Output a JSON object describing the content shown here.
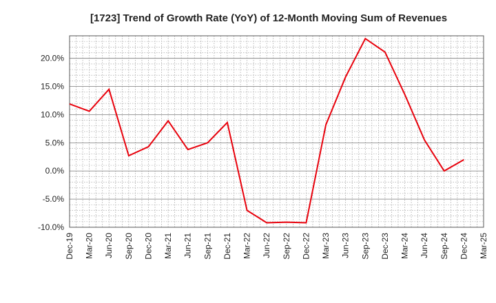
{
  "chart_data": {
    "type": "line",
    "title": "[1723]  Trend of Growth Rate (YoY) of 12-Month Moving Sum of Revenues",
    "xlabel": "",
    "ylabel": "",
    "y_unit": "%",
    "ylim": [
      -10,
      24
    ],
    "yticks": [
      20,
      15,
      10,
      5,
      0,
      -5,
      -10
    ],
    "ytick_labels": [
      "20.0%",
      "15.0%",
      "10.0%",
      "5.0%",
      "0.0%",
      "-5.0%",
      "-10.0%"
    ],
    "x_tick_labels": [
      "Dec-19",
      "Mar-20",
      "Jun-20",
      "Sep-20",
      "Dec-20",
      "Mar-21",
      "Jun-21",
      "Sep-21",
      "Dec-21",
      "Mar-22",
      "Jun-22",
      "Sep-22",
      "Dec-22",
      "Mar-23",
      "Jun-23",
      "Sep-23",
      "Dec-23",
      "Mar-24",
      "Jun-24",
      "Sep-24",
      "Dec-24",
      "Mar-25"
    ],
    "grid": true,
    "line_color": "#e8000b",
    "series": [
      {
        "x": [
          "Dec-19",
          "Mar-20",
          "Jun-20",
          "Sep-20",
          "Dec-20",
          "Mar-21",
          "Jun-21",
          "Sep-21",
          "Dec-21",
          "Mar-22",
          "Jun-22",
          "Sep-22",
          "Dec-22",
          "Mar-23",
          "Jun-23",
          "Sep-23",
          "Dec-23",
          "Mar-24",
          "Jun-24",
          "Sep-24",
          "Dec-24"
        ],
        "values": [
          11.9,
          10.6,
          14.5,
          2.7,
          4.3,
          8.9,
          3.8,
          5.0,
          8.6,
          -7.0,
          -9.2,
          -9.1,
          -9.2,
          8.2,
          16.7,
          23.5,
          21.1,
          13.6,
          5.5,
          0.0,
          2.0
        ]
      }
    ]
  }
}
